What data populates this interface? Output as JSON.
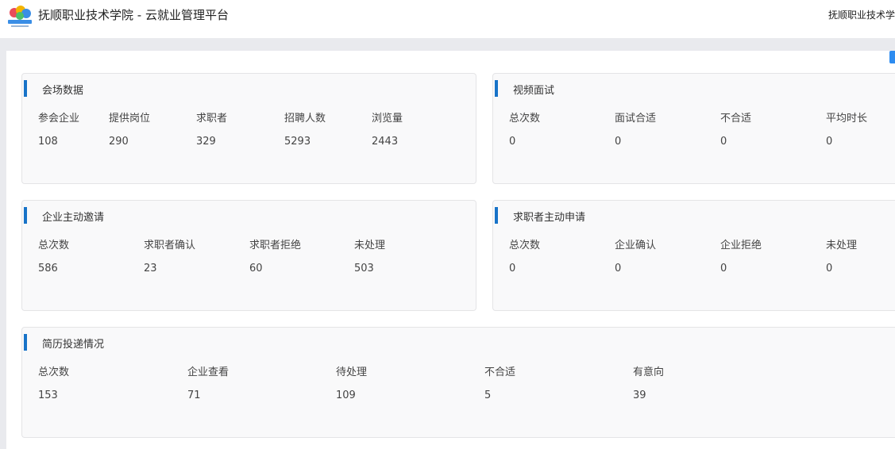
{
  "header": {
    "title": "抚顺职业技术学院 - 云就业管理平台",
    "user": "抚顺职业技术学"
  },
  "panels": [
    {
      "title": "会场数据",
      "labels": [
        "参会企业",
        "提供岗位",
        "求职者",
        "招聘人数",
        "浏览量"
      ],
      "values": [
        108,
        290,
        329,
        5293,
        2443
      ]
    },
    {
      "title": "视频面试",
      "labels": [
        "总次数",
        "面试合适",
        "不合适",
        "平均时长"
      ],
      "values": [
        0,
        0,
        0,
        0
      ]
    },
    {
      "title": "企业主动邀请",
      "labels": [
        "总次数",
        "求职者确认",
        "求职者拒绝",
        "未处理"
      ],
      "values": [
        586,
        23,
        60,
        503
      ]
    },
    {
      "title": "求职者主动申请",
      "labels": [
        "总次数",
        "企业确认",
        "企业拒绝",
        "未处理"
      ],
      "values": [
        0,
        0,
        0,
        0
      ]
    },
    {
      "title": "简历投递情况",
      "labels": [
        "总次数",
        "企业查看",
        "待处理",
        "不合适",
        "有意向"
      ],
      "values": [
        153,
        71,
        109,
        5,
        39
      ]
    }
  ]
}
